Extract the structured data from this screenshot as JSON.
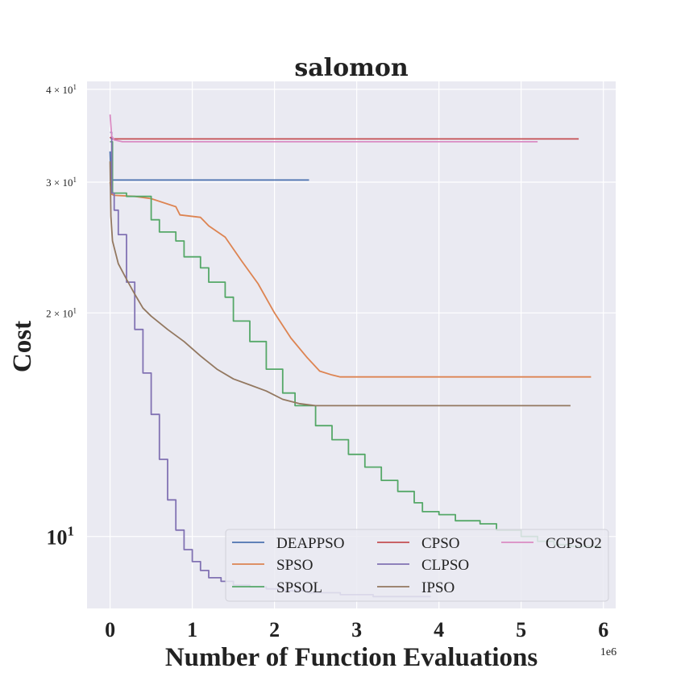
{
  "chart_data": {
    "type": "line",
    "title": "salomon",
    "xlabel": "Number of Function Evaluations",
    "ylabel": "Cost",
    "x_offset_label": "1e6",
    "y_scale": "log",
    "xlim": [
      -0.28,
      6.15
    ],
    "ylim": [
      8.0,
      41.0
    ],
    "x_ticks": [
      0,
      1,
      2,
      3,
      4,
      5,
      6
    ],
    "x_tick_labels": [
      "0",
      "1",
      "2",
      "3",
      "4",
      "5",
      "6"
    ],
    "y_ticks": [
      {
        "value": 10,
        "base": "10",
        "exp": "1",
        "size": "big"
      },
      {
        "value": 20,
        "base": "2 × 10",
        "exp": "1",
        "size": "small"
      },
      {
        "value": 30,
        "base": "3 × 10",
        "exp": "1",
        "size": "small"
      },
      {
        "value": 40,
        "base": "4 × 10",
        "exp": "1",
        "size": "small"
      }
    ],
    "grid": true,
    "legend_position": "lower-right",
    "legend_columns": 3,
    "series": [
      {
        "name": "DEAPPSO",
        "color": "#4c72b0",
        "step": false,
        "x": [
          0,
          0.01,
          0.02,
          0.05,
          2.42
        ],
        "y": [
          33,
          30.6,
          30.2,
          30.2,
          30.2
        ]
      },
      {
        "name": "SPSO",
        "color": "#dd8452",
        "step": false,
        "x": [
          0,
          0.02,
          0.05,
          0.3,
          0.5,
          0.8,
          0.85,
          1.1,
          1.2,
          1.4,
          1.6,
          1.8,
          2.0,
          2.2,
          2.4,
          2.55,
          2.7,
          2.8,
          3.5,
          5.85
        ],
        "y": [
          30,
          28.9,
          28.8,
          28.7,
          28.5,
          27.8,
          27.1,
          26.9,
          26.2,
          25.3,
          23.5,
          21.9,
          20.0,
          18.5,
          17.4,
          16.7,
          16.5,
          16.4,
          16.4,
          16.4
        ]
      },
      {
        "name": "SPSOL",
        "color": "#55a868",
        "step": true,
        "x": [
          0,
          0.03,
          0.2,
          0.5,
          0.6,
          0.8,
          0.9,
          1.1,
          1.2,
          1.4,
          1.5,
          1.7,
          1.9,
          2.1,
          2.25,
          2.5,
          2.7,
          2.9,
          3.1,
          3.3,
          3.5,
          3.7,
          3.8,
          4.0,
          4.2,
          4.5,
          4.7,
          5.0,
          5.2,
          5.4,
          5.6,
          5.97
        ],
        "y": [
          34,
          29.0,
          28.7,
          26.7,
          25.7,
          25.0,
          23.8,
          23.0,
          22.0,
          21.0,
          19.5,
          18.3,
          16.8,
          15.6,
          15.0,
          14.1,
          13.5,
          12.9,
          12.4,
          11.9,
          11.5,
          11.1,
          10.8,
          10.7,
          10.5,
          10.4,
          10.2,
          10.0,
          9.85,
          9.75,
          9.7,
          9.7
        ]
      },
      {
        "name": "CPSO",
        "color": "#c44e52",
        "step": false,
        "x": [
          0,
          0.02,
          5.7
        ],
        "y": [
          34.5,
          34.3,
          34.3
        ]
      },
      {
        "name": "CLPSO",
        "color": "#8172b3",
        "step": true,
        "x": [
          0,
          0.02,
          0.05,
          0.1,
          0.2,
          0.3,
          0.4,
          0.5,
          0.6,
          0.7,
          0.8,
          0.9,
          1.0,
          1.1,
          1.2,
          1.35,
          1.5,
          1.7,
          1.9,
          2.1,
          2.4,
          2.8,
          3.2,
          3.9
        ],
        "y": [
          35,
          29.0,
          27.5,
          25.5,
          22.0,
          19.0,
          16.6,
          14.6,
          12.7,
          11.2,
          10.2,
          9.6,
          9.25,
          9.0,
          8.8,
          8.7,
          8.6,
          8.55,
          8.5,
          8.45,
          8.4,
          8.35,
          8.3,
          8.3
        ]
      },
      {
        "name": "IPSO",
        "color": "#937860",
        "step": false,
        "x": [
          0,
          0.01,
          0.03,
          0.1,
          0.2,
          0.3,
          0.4,
          0.5,
          0.7,
          0.9,
          1.1,
          1.3,
          1.5,
          1.7,
          1.9,
          2.1,
          2.3,
          2.5,
          3.0,
          4.0,
          5.0,
          5.6
        ],
        "y": [
          32,
          27.0,
          25.0,
          23.3,
          22.2,
          21.2,
          20.3,
          19.8,
          19.0,
          18.3,
          17.5,
          16.8,
          16.3,
          16.0,
          15.7,
          15.3,
          15.1,
          15.0,
          15.0,
          15.0,
          15.0,
          15.0
        ]
      },
      {
        "name": "CCPSO2",
        "color": "#da8bc3",
        "step": false,
        "x": [
          0,
          0.02,
          0.05,
          0.1,
          0.15,
          5.2
        ],
        "y": [
          37,
          34.6,
          34.2,
          34.1,
          34.0,
          34.0
        ]
      }
    ]
  }
}
